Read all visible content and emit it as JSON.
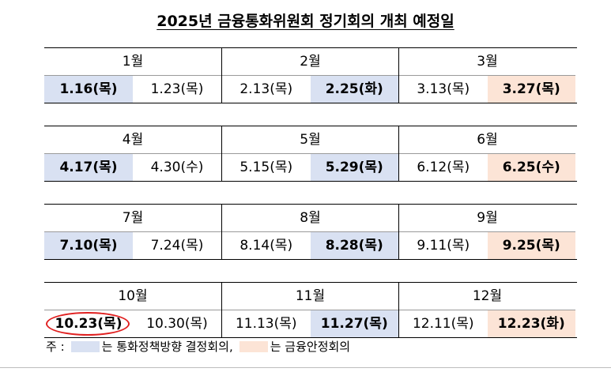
{
  "title": "2025년 금융통화위원회 정기회의 개최 예정일",
  "colors": {
    "policy": "#d9e1f2",
    "stability": "#fce4d6",
    "circle": "#e02020"
  },
  "quarters": [
    [
      {
        "month": "1월",
        "dates": [
          {
            "text": "1.16(목)",
            "type": "policy"
          },
          {
            "text": "1.23(목)",
            "type": "none"
          }
        ]
      },
      {
        "month": "2월",
        "dates": [
          {
            "text": "2.13(목)",
            "type": "none"
          },
          {
            "text": "2.25(화)",
            "type": "policy"
          }
        ]
      },
      {
        "month": "3월",
        "dates": [
          {
            "text": "3.13(목)",
            "type": "none"
          },
          {
            "text": "3.27(목)",
            "type": "stability"
          }
        ]
      }
    ],
    [
      {
        "month": "4월",
        "dates": [
          {
            "text": "4.17(목)",
            "type": "policy"
          },
          {
            "text": "4.30(수)",
            "type": "none"
          }
        ]
      },
      {
        "month": "5월",
        "dates": [
          {
            "text": "5.15(목)",
            "type": "none"
          },
          {
            "text": "5.29(목)",
            "type": "policy"
          }
        ]
      },
      {
        "month": "6월",
        "dates": [
          {
            "text": "6.12(목)",
            "type": "none"
          },
          {
            "text": "6.25(수)",
            "type": "stability"
          }
        ]
      }
    ],
    [
      {
        "month": "7월",
        "dates": [
          {
            "text": "7.10(목)",
            "type": "policy"
          },
          {
            "text": "7.24(목)",
            "type": "none"
          }
        ]
      },
      {
        "month": "8월",
        "dates": [
          {
            "text": "8.14(목)",
            "type": "none"
          },
          {
            "text": "8.28(목)",
            "type": "policy"
          }
        ]
      },
      {
        "month": "9월",
        "dates": [
          {
            "text": "9.11(목)",
            "type": "none"
          },
          {
            "text": "9.25(목)",
            "type": "stability"
          }
        ]
      }
    ],
    [
      {
        "month": "10월",
        "dates": [
          {
            "text": "10.23(목)",
            "type": "none",
            "bold": true,
            "circled": true
          },
          {
            "text": "10.30(목)",
            "type": "none"
          }
        ]
      },
      {
        "month": "11월",
        "dates": [
          {
            "text": "11.13(목)",
            "type": "none"
          },
          {
            "text": "11.27(목)",
            "type": "policy"
          }
        ]
      },
      {
        "month": "12월",
        "dates": [
          {
            "text": "12.11(목)",
            "type": "none"
          },
          {
            "text": "12.23(화)",
            "type": "stability"
          }
        ]
      }
    ]
  ],
  "legend": {
    "prefix": "주 :",
    "policy_label": "는 통화정책방향 결정회의,",
    "stability_label": "는 금융안정회의"
  }
}
